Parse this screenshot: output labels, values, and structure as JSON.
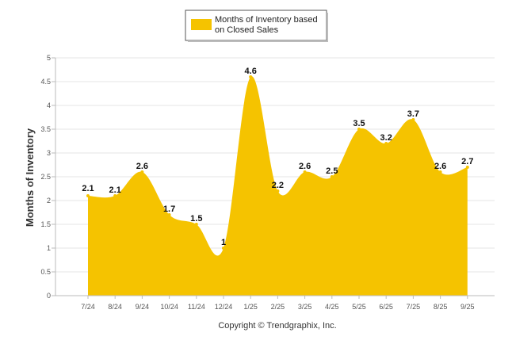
{
  "chart_data": {
    "type": "area",
    "categories": [
      "7/24",
      "8/24",
      "9/24",
      "10/24",
      "11/24",
      "12/24",
      "1/25",
      "2/25",
      "3/25",
      "4/25",
      "5/25",
      "6/25",
      "7/25",
      "8/25",
      "9/25"
    ],
    "series": [
      {
        "name": "Months of Inventory based on Closed Sales",
        "values": [
          2.1,
          2.1,
          2.6,
          1.7,
          1.5,
          1,
          4.6,
          2.2,
          2.6,
          2.5,
          3.5,
          3.2,
          3.7,
          2.6,
          2.7
        ],
        "labels": [
          "2.1",
          "2.1",
          "2.6",
          "1.7",
          "1.5",
          "1",
          "4.6",
          "2.2",
          "2.6",
          "2.5",
          "3.5",
          "3.2",
          "3.7",
          "2.6",
          "2.7"
        ],
        "color": "#F5C300"
      }
    ],
    "title": "",
    "xlabel": "",
    "ylabel": "Months of Inventory",
    "ylim": [
      0,
      5
    ],
    "yticks": [
      "0",
      "0.5",
      "1",
      "1.5",
      "2",
      "2.5",
      "3",
      "3.5",
      "4",
      "4.5",
      "5"
    ],
    "ytick_values": [
      0,
      0.5,
      1,
      1.5,
      2,
      2.5,
      3,
      3.5,
      4,
      4.5,
      5
    ],
    "grid": true,
    "legend": {
      "position": "top-center",
      "line1": "Months of Inventory based",
      "line2": "on Closed Sales"
    }
  },
  "footer": {
    "copyright": "Copyright © Trendgraphix, Inc."
  },
  "colors": {
    "area": "#F5C300",
    "grid": "#E6E6E6",
    "axis": "#BBBBBB"
  }
}
